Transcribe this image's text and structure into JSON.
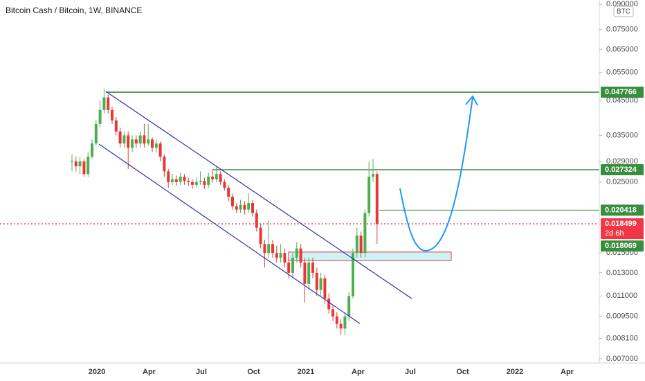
{
  "chart_data": {
    "type": "candlestick",
    "title": "Bitcoin Cash / Bitcoin, 1W, BINANCE",
    "currency": "BTC",
    "log_scale": true,
    "up_color": "#4caf50",
    "down_color": "#e53935",
    "ylim": [
      0.00679,
      0.0928
    ],
    "yticks": [
      {
        "value": 0.09,
        "label": "0.090000"
      },
      {
        "value": 0.075,
        "label": "0.075000"
      },
      {
        "value": 0.065,
        "label": "0.065000"
      },
      {
        "value": 0.055,
        "label": "0.055000"
      },
      {
        "value": 0.045,
        "label": "0.045000"
      },
      {
        "value": 0.035,
        "label": "0.035000"
      },
      {
        "value": 0.029,
        "label": "0.029000"
      },
      {
        "value": 0.025,
        "label": "0.025000"
      },
      {
        "value": 0.015,
        "label": "0.015000"
      },
      {
        "value": 0.013,
        "label": "0.013000"
      },
      {
        "value": 0.011,
        "label": "0.011000"
      },
      {
        "value": 0.0095,
        "label": "0.009500"
      },
      {
        "value": 0.0081,
        "label": "0.008100"
      },
      {
        "value": 0.007,
        "label": "0.007000"
      }
    ],
    "xtick_labels": [
      "2020",
      "Apr",
      "Jul",
      "Oct",
      "2021",
      "Apr",
      "Jul",
      "Oct",
      "2022",
      "Apr"
    ],
    "open": [
      0.029,
      0.029,
      0.028,
      0.029,
      0.0265,
      0.03,
      0.033,
      0.038,
      0.042,
      0.046,
      0.042,
      0.039,
      0.036,
      0.033,
      0.035,
      0.032,
      0.034,
      0.033,
      0.035,
      0.033,
      0.034,
      0.032,
      0.033,
      0.03,
      0.027,
      0.025,
      0.0255,
      0.025,
      0.026,
      0.0252,
      0.025,
      0.0245,
      0.025,
      0.0252,
      0.0245,
      0.026,
      0.0255,
      0.0265,
      0.025,
      0.024,
      0.0225,
      0.021,
      0.0205,
      0.0212,
      0.0205,
      0.0215,
      0.02,
      0.018,
      0.016,
      0.015,
      0.016,
      0.015,
      0.0145,
      0.015,
      0.014,
      0.013,
      0.0145,
      0.0155,
      0.014,
      0.012,
      0.014,
      0.013,
      0.0115,
      0.0125,
      0.0108,
      0.01,
      0.0095,
      0.009,
      0.0087,
      0.0095,
      0.011,
      0.015,
      0.017,
      0.015,
      0.02,
      0.026,
      0.0265
    ],
    "high": [
      0.0305,
      0.03,
      0.03,
      0.0295,
      0.031,
      0.034,
      0.039,
      0.045,
      0.049,
      0.047,
      0.043,
      0.04,
      0.037,
      0.036,
      0.036,
      0.035,
      0.035,
      0.036,
      0.038,
      0.038,
      0.0345,
      0.034,
      0.0335,
      0.0305,
      0.0275,
      0.0265,
      0.0262,
      0.0268,
      0.0265,
      0.0258,
      0.0255,
      0.0258,
      0.027,
      0.0258,
      0.0268,
      0.0275,
      0.028,
      0.027,
      0.0255,
      0.0245,
      0.023,
      0.0215,
      0.022,
      0.0218,
      0.023,
      0.022,
      0.0205,
      0.0185,
      0.0165,
      0.019,
      0.0165,
      0.0158,
      0.016,
      0.0155,
      0.0145,
      0.015,
      0.0162,
      0.016,
      0.0145,
      0.0145,
      0.0145,
      0.0135,
      0.013,
      0.0128,
      0.0112,
      0.0103,
      0.0098,
      0.0093,
      0.0098,
      0.0113,
      0.0155,
      0.018,
      0.0175,
      0.0205,
      0.029,
      0.0295,
      0.027
    ],
    "low": [
      0.027,
      0.027,
      0.0265,
      0.026,
      0.026,
      0.0295,
      0.0325,
      0.037,
      0.041,
      0.041,
      0.038,
      0.035,
      0.032,
      0.032,
      0.0275,
      0.031,
      0.032,
      0.032,
      0.032,
      0.0325,
      0.031,
      0.031,
      0.029,
      0.026,
      0.024,
      0.0245,
      0.0243,
      0.0245,
      0.0245,
      0.0243,
      0.0238,
      0.024,
      0.0245,
      0.0238,
      0.024,
      0.0248,
      0.025,
      0.0245,
      0.0235,
      0.0218,
      0.0205,
      0.02,
      0.02,
      0.0198,
      0.02,
      0.0195,
      0.0175,
      0.0155,
      0.0135,
      0.0145,
      0.0145,
      0.014,
      0.014,
      0.0135,
      0.0125,
      0.0125,
      0.014,
      0.0135,
      0.0105,
      0.0115,
      0.0125,
      0.011,
      0.011,
      0.0104,
      0.0097,
      0.0092,
      0.0087,
      0.0083,
      0.0083,
      0.0092,
      0.0108,
      0.0145,
      0.0145,
      0.0145,
      0.0195,
      0.025,
      0.016
    ],
    "close": [
      0.029,
      0.028,
      0.029,
      0.0265,
      0.03,
      0.033,
      0.038,
      0.042,
      0.046,
      0.042,
      0.039,
      0.036,
      0.033,
      0.035,
      0.032,
      0.034,
      0.033,
      0.035,
      0.033,
      0.034,
      0.032,
      0.033,
      0.03,
      0.027,
      0.025,
      0.0255,
      0.025,
      0.026,
      0.0252,
      0.025,
      0.0245,
      0.025,
      0.0252,
      0.0245,
      0.026,
      0.0255,
      0.0265,
      0.025,
      0.024,
      0.0225,
      0.021,
      0.0205,
      0.0212,
      0.0205,
      0.0215,
      0.02,
      0.018,
      0.016,
      0.015,
      0.016,
      0.015,
      0.0145,
      0.015,
      0.014,
      0.013,
      0.0145,
      0.0155,
      0.014,
      0.012,
      0.014,
      0.013,
      0.0115,
      0.0125,
      0.0108,
      0.01,
      0.0095,
      0.009,
      0.0087,
      0.0095,
      0.011,
      0.015,
      0.017,
      0.015,
      0.02,
      0.026,
      0.0265,
      0.018499
    ],
    "levels": [
      {
        "value": 0.047766,
        "color": "#388e3c"
      },
      {
        "value": 0.027324,
        "color": "#388e3c"
      },
      {
        "value": 0.020418,
        "color": "#388e3c"
      },
      {
        "value": 0.018499,
        "color": "#f23645",
        "countdown": "2d 6h"
      },
      {
        "value": 0.018069,
        "color": "#388e3c"
      }
    ],
    "zone": [
      0.0142,
      0.0151
    ]
  }
}
